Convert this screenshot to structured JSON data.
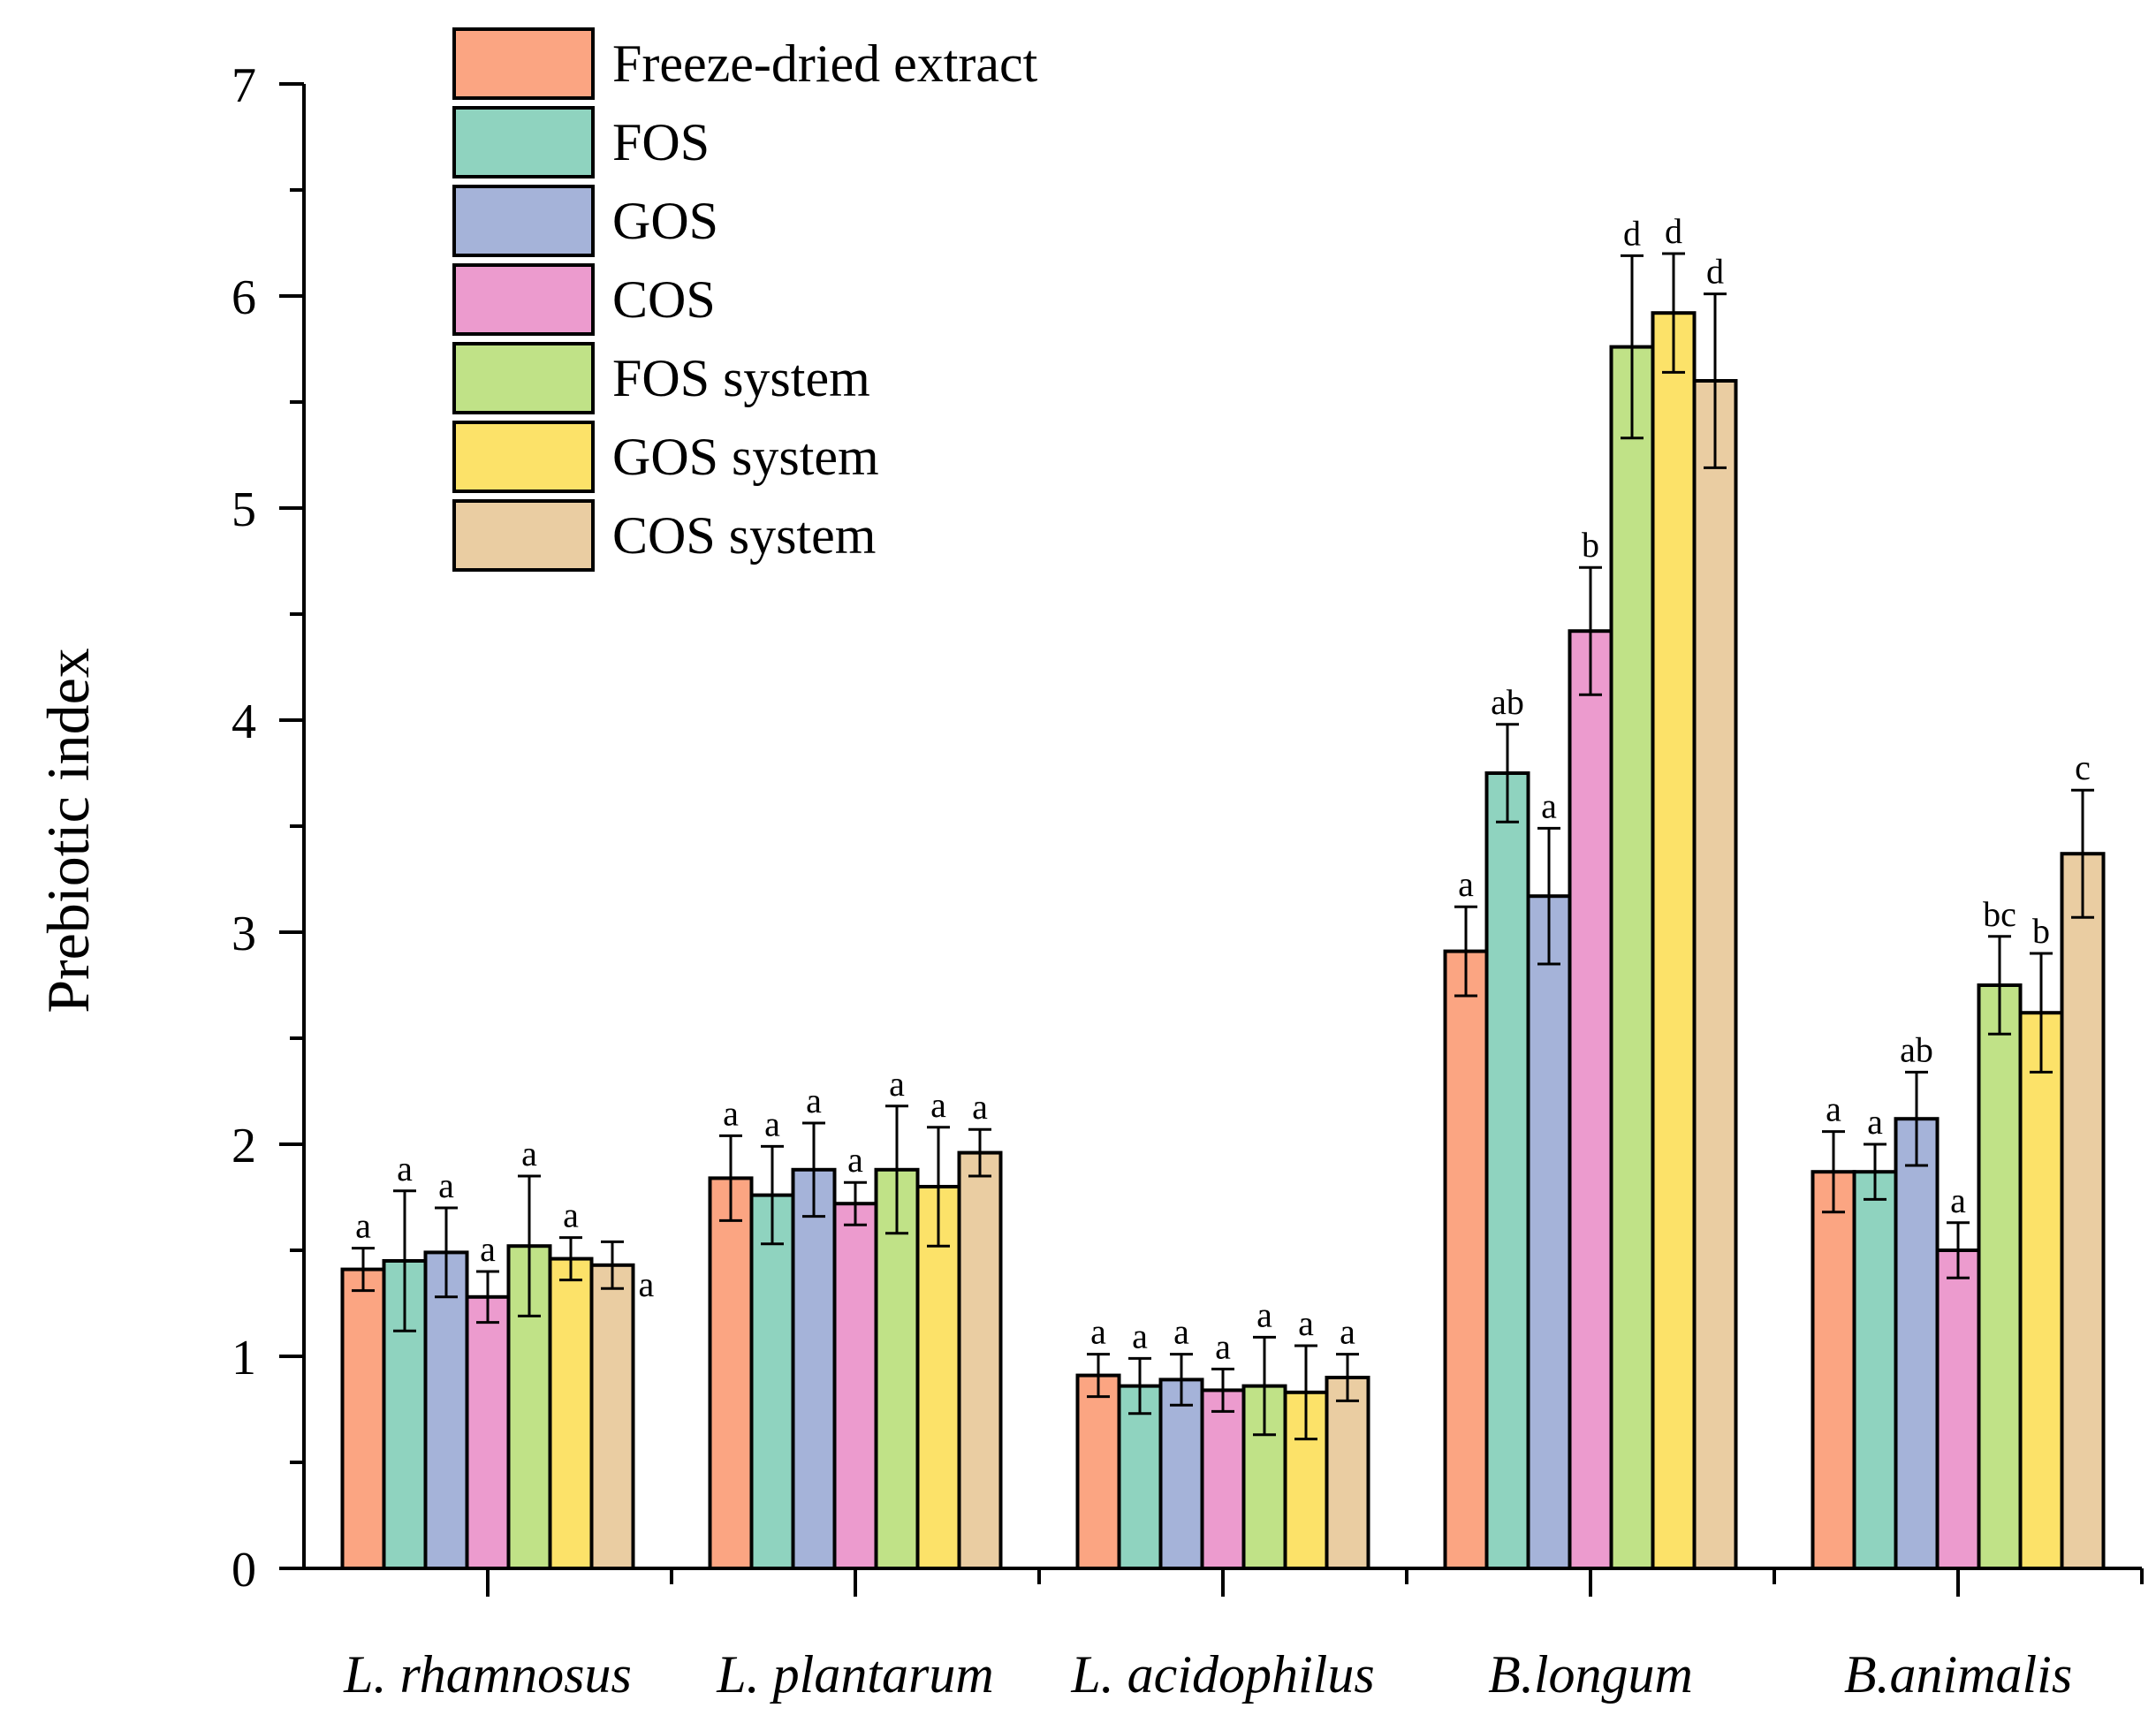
{
  "chart_data": {
    "type": "bar",
    "title": "",
    "xlabel": "",
    "ylabel": "Prebiotic index",
    "ylim": [
      0,
      7
    ],
    "yticks": [
      "0",
      "1",
      "2",
      "3",
      "4",
      "5",
      "6",
      "7"
    ],
    "categories": [
      "L. rhamnosus",
      "L. plantarum",
      "L. acidophilus",
      "B.longum",
      "B.animalis"
    ],
    "legend_position": "top-left",
    "series": [
      {
        "name": "Freeze-dried extract",
        "color": "#FBA582",
        "values": [
          1.41,
          1.84,
          0.91,
          2.91,
          1.87
        ],
        "errors": [
          0.1,
          0.2,
          0.1,
          0.21,
          0.19
        ],
        "labels": [
          "a",
          "a",
          "a",
          "a",
          "a"
        ]
      },
      {
        "name": "FOS",
        "color": "#8FD3BF",
        "values": [
          1.45,
          1.76,
          0.86,
          3.75,
          1.87
        ],
        "errors": [
          0.33,
          0.23,
          0.13,
          0.23,
          0.13
        ],
        "labels": [
          "a",
          "a",
          "a",
          "ab",
          "a"
        ]
      },
      {
        "name": "GOS",
        "color": "#A5B3D9",
        "values": [
          1.49,
          1.88,
          0.89,
          3.17,
          2.12
        ],
        "errors": [
          0.21,
          0.22,
          0.12,
          0.32,
          0.22
        ],
        "labels": [
          "a",
          "a",
          "a",
          "a",
          "ab"
        ]
      },
      {
        "name": "COS",
        "color": "#EC9BCE",
        "values": [
          1.28,
          1.72,
          0.84,
          4.42,
          1.5
        ],
        "errors": [
          0.12,
          0.1,
          0.1,
          0.3,
          0.13
        ],
        "labels": [
          "a",
          "a",
          "a",
          "b",
          "a"
        ]
      },
      {
        "name": "FOS system",
        "color": "#C0E287",
        "values": [
          1.52,
          1.88,
          0.86,
          5.76,
          2.75
        ],
        "errors": [
          0.33,
          0.3,
          0.23,
          0.43,
          0.23
        ],
        "labels": [
          "a",
          "a",
          "a",
          "d",
          "bc"
        ]
      },
      {
        "name": "GOS system",
        "color": "#FCE269",
        "values": [
          1.46,
          1.8,
          0.83,
          5.92,
          2.62
        ],
        "errors": [
          0.1,
          0.28,
          0.22,
          0.28,
          0.28
        ],
        "labels": [
          "a",
          "a",
          "a",
          "d",
          "b"
        ]
      },
      {
        "name": "COS system",
        "color": "#EACDA2",
        "values": [
          1.43,
          1.96,
          0.9,
          5.6,
          3.37
        ],
        "errors": [
          0.11,
          0.11,
          0.11,
          0.41,
          0.3
        ],
        "labels": [
          "a",
          "a",
          "a",
          "d",
          "c"
        ]
      }
    ]
  }
}
